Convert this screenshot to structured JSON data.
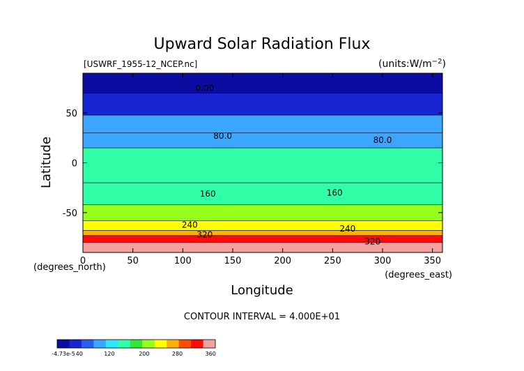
{
  "chart_data": {
    "type": "heatmap",
    "title": "Upward Solar Radiation Flux",
    "file_label": "[USWRF_1955-12_NCEP.nc]",
    "units_label": "(units:W/m^-2)",
    "xlabel": "Longitude",
    "ylabel": "Latitude",
    "x_unit_label": "(degrees_east)",
    "y_unit_label": "(degrees_north)",
    "xlim": [
      0,
      360
    ],
    "ylim": [
      -90,
      90
    ],
    "x_ticks": [
      0,
      50,
      100,
      150,
      200,
      250,
      300,
      350
    ],
    "y_ticks": [
      50,
      0,
      -50
    ],
    "contour_interval_text": "CONTOUR INTERVAL = 4.000E+01",
    "contour_labels": [
      {
        "text": "0.00",
        "lon": 122,
        "lat": 72
      },
      {
        "text": "80.0",
        "lon": 140,
        "lat": 24
      },
      {
        "text": "80.0",
        "lon": 300,
        "lat": 20
      },
      {
        "text": "160",
        "lon": 252,
        "lat": -33
      },
      {
        "text": "160",
        "lon": 125,
        "lat": -34
      },
      {
        "text": "240",
        "lon": 107,
        "lat": -65
      },
      {
        "text": "320",
        "lon": 122,
        "lat": -75
      },
      {
        "text": "240",
        "lon": 265,
        "lat": -69
      },
      {
        "text": "320",
        "lon": 290,
        "lat": -82
      }
    ],
    "lat_bands": [
      {
        "lat_top": 90,
        "lat_bottom": 70,
        "level": 0
      },
      {
        "lat_top": 70,
        "lat_bottom": 48,
        "level": 40
      },
      {
        "lat_top": 48,
        "lat_bottom": 30,
        "level": 80
      },
      {
        "lat_top": 30,
        "lat_bottom": 15,
        "level": 100
      },
      {
        "lat_top": 15,
        "lat_bottom": -20,
        "level": 140
      },
      {
        "lat_top": -20,
        "lat_bottom": -42,
        "level": 160
      },
      {
        "lat_top": -42,
        "lat_bottom": -58,
        "level": 200
      },
      {
        "lat_top": -58,
        "lat_bottom": -68,
        "level": 240
      },
      {
        "lat_top": -68,
        "lat_bottom": -73,
        "level": 280
      },
      {
        "lat_top": -73,
        "lat_bottom": -80,
        "level": 320
      },
      {
        "lat_top": -80,
        "lat_bottom": -90,
        "level": 360
      }
    ],
    "colorbar": {
      "labels": [
        "-4.73e-5",
        "40",
        "120",
        "200",
        "280",
        "360"
      ],
      "colors": [
        "#0c0ca0",
        "#1826d2",
        "#2a60f0",
        "#3aa6ff",
        "#33e6ff",
        "#30ffa8",
        "#33e633",
        "#96ff1e",
        "#ffff00",
        "#ffb000",
        "#ff4c00",
        "#ff0a0a",
        "#f2a0a0"
      ]
    }
  }
}
